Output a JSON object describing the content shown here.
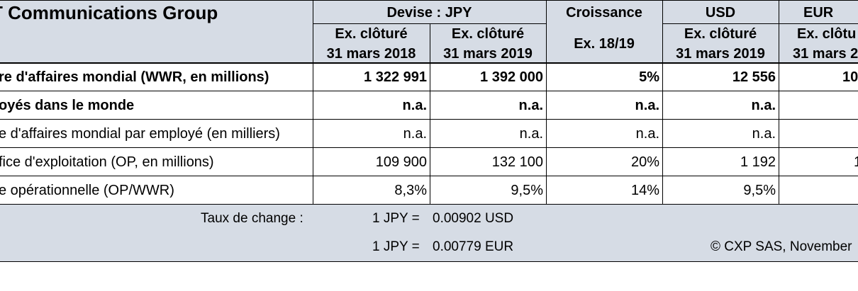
{
  "table": {
    "title": "T Communications Group",
    "columns": {
      "jpy_group": "Devise : JPY",
      "growth": "Croissance",
      "usd": "USD",
      "eur": "EUR",
      "jpy_2018": [
        "Ex. clôturé",
        "31 mars 2018"
      ],
      "jpy_2019": [
        "Ex. clôturé",
        "31 mars 2019"
      ],
      "growth_period": "Ex. 18/19",
      "usd_2019": [
        "Ex. clôturé",
        "31 mars 2019"
      ],
      "eur_2019": [
        "Ex. clôtu",
        "31 mars 2"
      ]
    },
    "rows": [
      {
        "label": "re d'affaires mondial (WWR, en millions)",
        "bold": true,
        "values": [
          "1 322 991",
          "1 392 000",
          "5%",
          "12 556",
          "10"
        ]
      },
      {
        "label": "oyés dans le monde",
        "bold": true,
        "values": [
          "n.a.",
          "n.a.",
          "n.a.",
          "n.a.",
          ""
        ]
      },
      {
        "label": "e d'affaires mondial par employé (en milliers)",
        "bold": false,
        "values": [
          "n.a.",
          "n.a.",
          "n.a.",
          "n.a.",
          ""
        ]
      },
      {
        "label": "fice d'exploitation (OP, en millions)",
        "bold": false,
        "values": [
          "109 900",
          "132 100",
          "20%",
          "1 192",
          "1"
        ]
      },
      {
        "label": "e opérationnelle (OP/WWR)",
        "bold": false,
        "values": [
          "8,3%",
          "9,5%",
          "14%",
          "9,5%",
          ""
        ]
      }
    ],
    "footer": {
      "exchange_label": "Taux de change :",
      "rates": [
        {
          "left": "1 JPY =",
          "right": "0.00902 USD"
        },
        {
          "left": "1 JPY =",
          "right": "0.00779 EUR"
        }
      ],
      "copyright": "© CXP SAS, November"
    }
  }
}
